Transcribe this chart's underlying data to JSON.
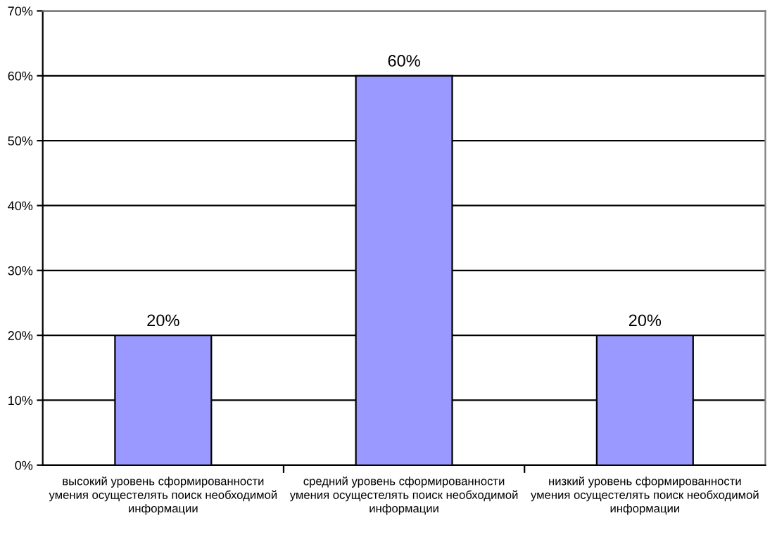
{
  "chart_data": {
    "type": "bar",
    "categories": [
      "высокий уровень сформированности\nумения осущестелять поиск необходимой\nинформации",
      "средний уровень сформированности\nумения осущестелять поиск необходимой\nинформации",
      "низкий уровень сформированности\nумения осущестелять поиск необходимой\nинформации"
    ],
    "values": [
      20,
      60,
      20
    ],
    "value_labels": [
      "20%",
      "60%",
      "20%"
    ],
    "color": "#9999ff",
    "ylim": [
      0,
      70
    ],
    "yticks": [
      {
        "value": 0,
        "label": "0%"
      },
      {
        "value": 10,
        "label": "10%"
      },
      {
        "value": 20,
        "label": "20%"
      },
      {
        "value": 30,
        "label": "30%"
      },
      {
        "value": 40,
        "label": "40%"
      },
      {
        "value": 50,
        "label": "50%"
      },
      {
        "value": 60,
        "label": "60%"
      },
      {
        "value": 70,
        "label": "70%"
      }
    ],
    "grid": "y",
    "legend": false
  }
}
